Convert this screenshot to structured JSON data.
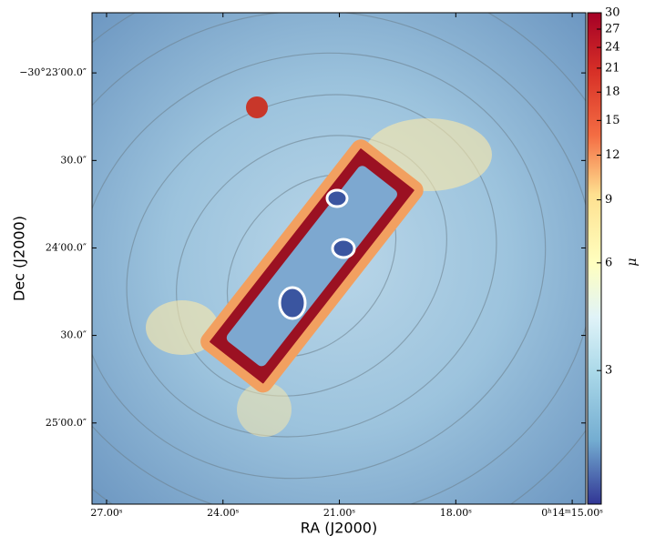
{
  "chart_data": {
    "type": "image",
    "xlabel": "RA (J2000)",
    "ylabel": "Dec (J2000)",
    "xlim": [
      27.375,
      14.65
    ],
    "xticks": [
      {
        "value": 27,
        "label": "27.00ˢ"
      },
      {
        "value": 24,
        "label": "24.00ˢ"
      },
      {
        "value": 21,
        "label": "21.00ˢ"
      },
      {
        "value": 18,
        "label": "18.00ˢ"
      },
      {
        "value": 15,
        "label": "0ʰ14ᵐ15.00ˢ"
      }
    ],
    "ylim": [
      -30.4244,
      -30.3776
    ],
    "yticks": [
      {
        "value": -30.38333,
        "label": "−30°23′00.0″"
      },
      {
        "value": -30.39167,
        "label": "30.0″"
      },
      {
        "value": -30.4,
        "label": "24′00.0″"
      },
      {
        "value": -30.40833,
        "label": "30.0″"
      },
      {
        "value": -30.41667,
        "label": "25′00.0″"
      }
    ],
    "colorbar": {
      "label": "μ",
      "log": true,
      "lim": [
        1.27,
        30
      ],
      "ticks": [
        3,
        6,
        9,
        12,
        15,
        18,
        21,
        24,
        27,
        30
      ]
    }
  }
}
